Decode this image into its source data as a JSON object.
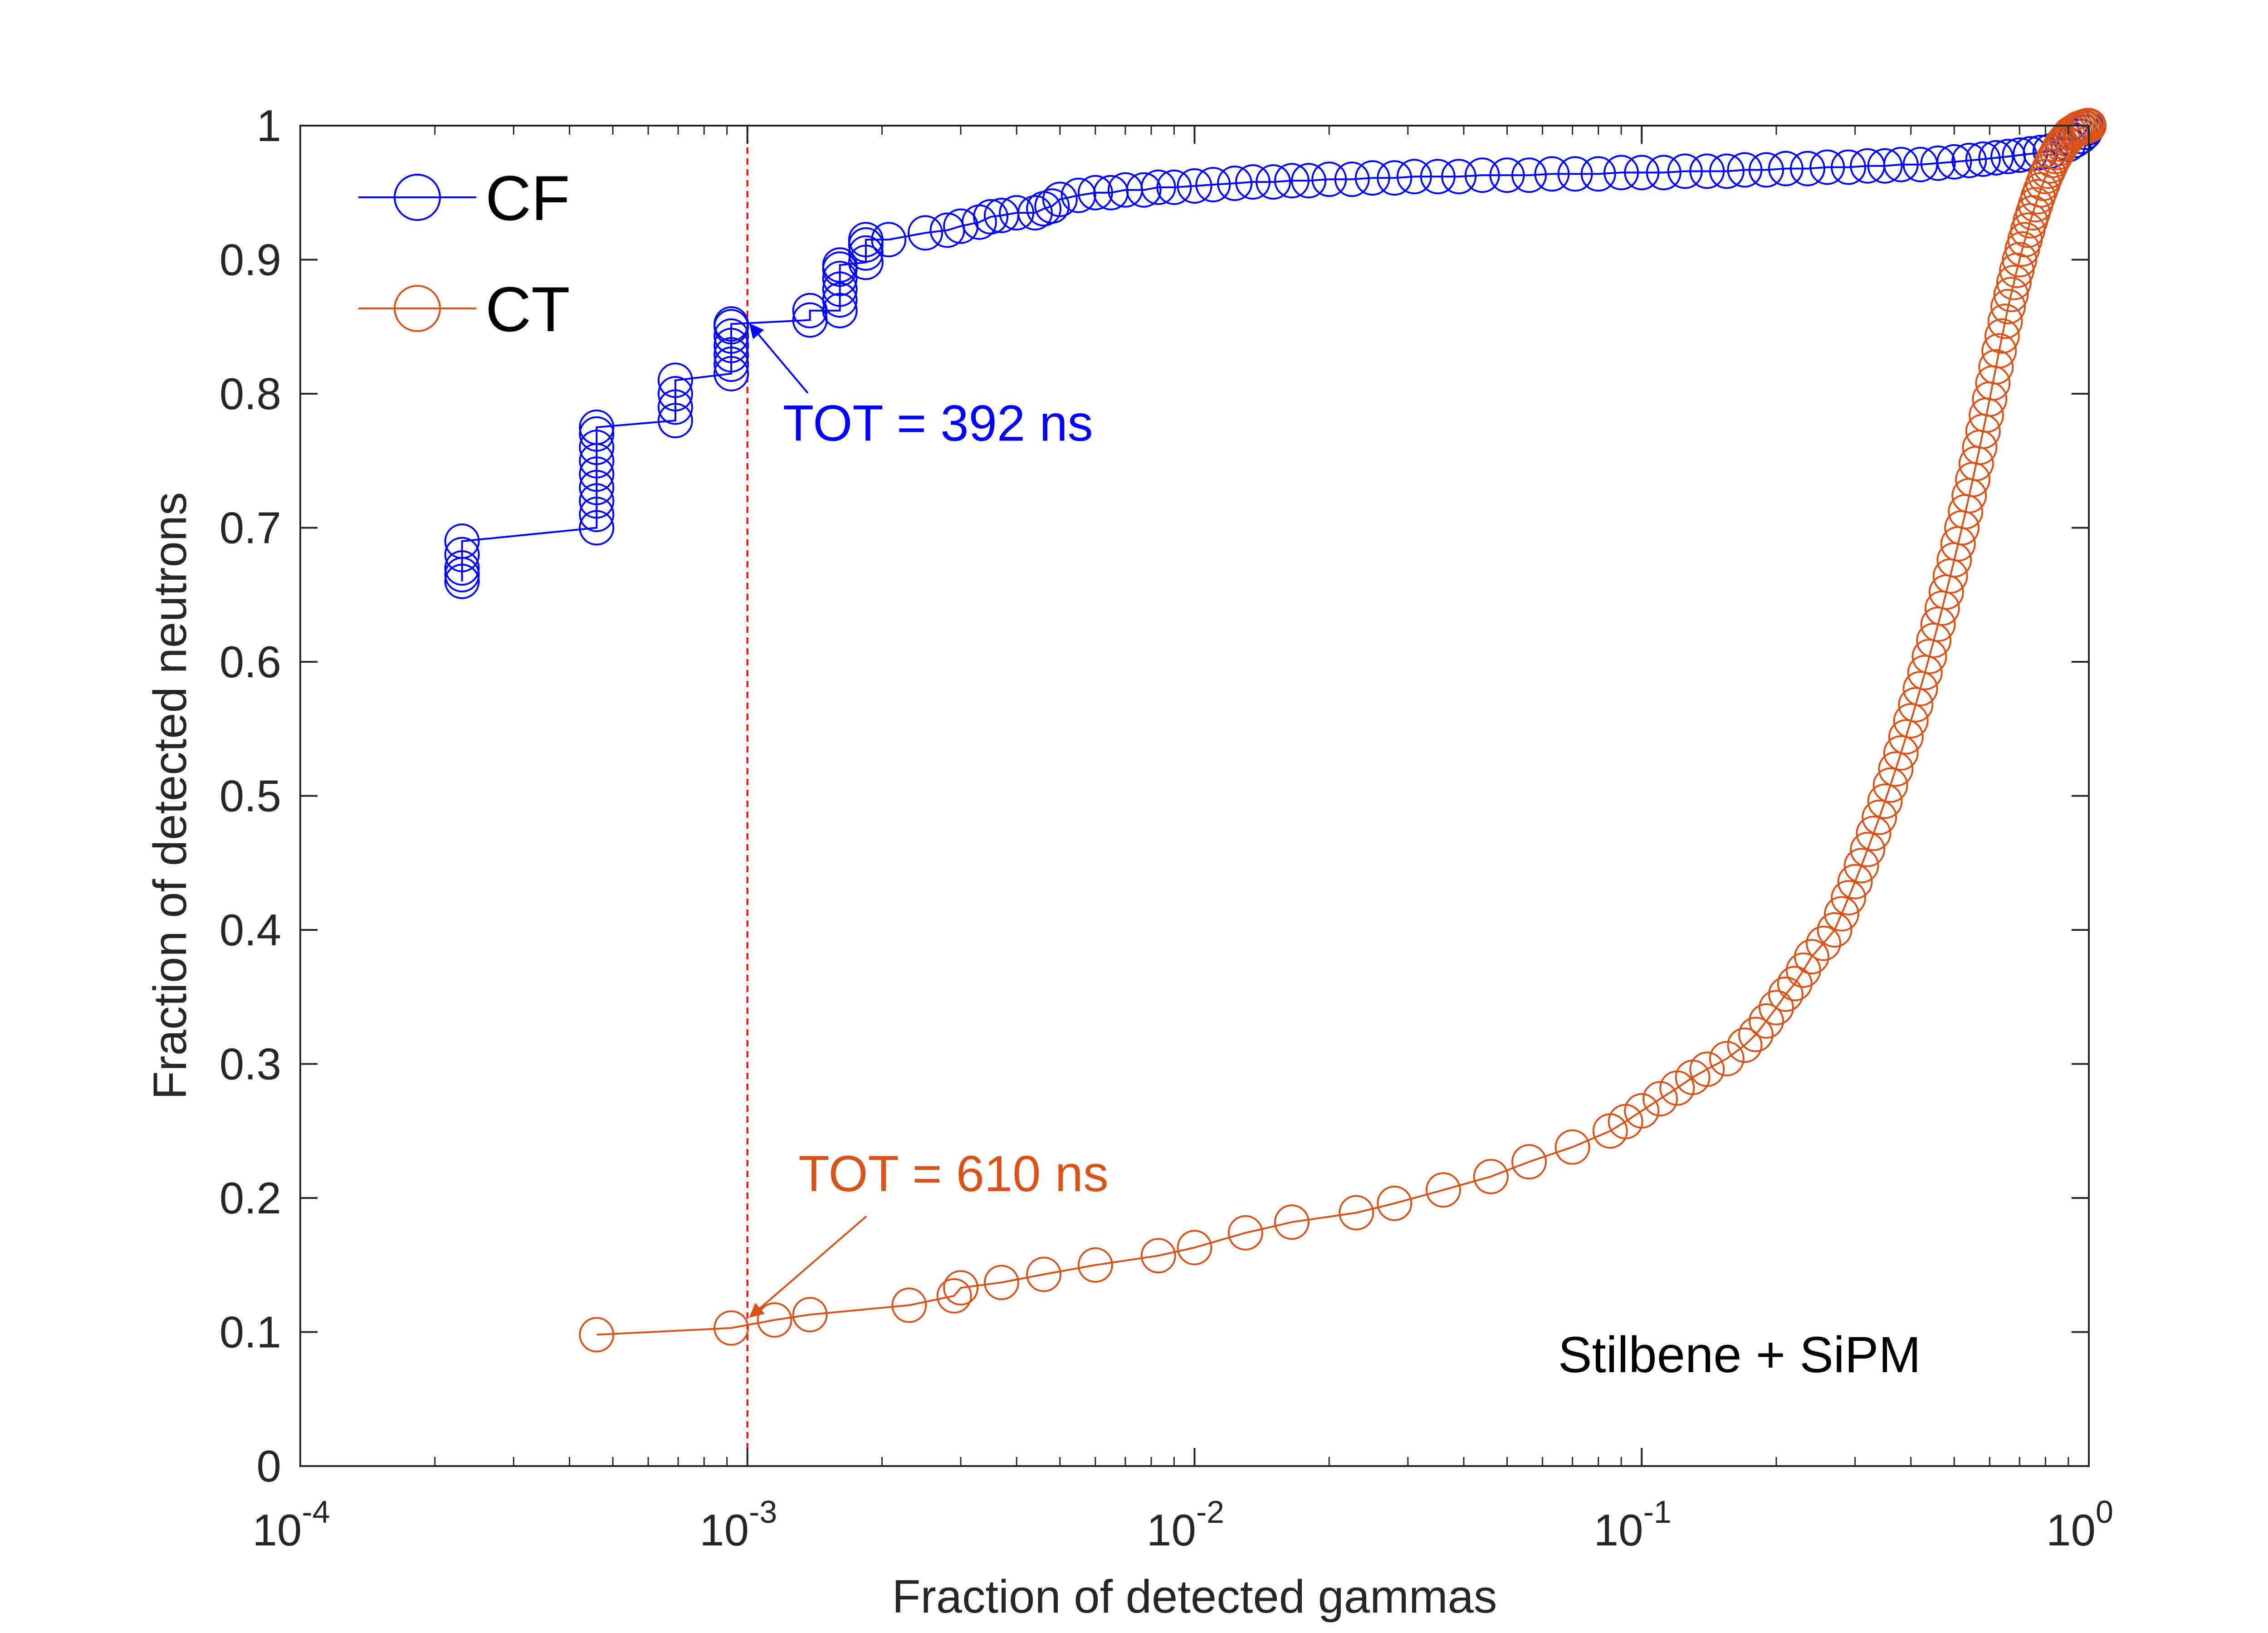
{
  "chart_data": {
    "type": "scatter",
    "title": "",
    "xlabel": "Fraction of detected gammas",
    "ylabel": "Fraction of detected neutrons",
    "xscale": "log",
    "xlim": [
      0.0001,
      1
    ],
    "ylim": [
      0,
      1
    ],
    "x_ticks": [
      {
        "value": 0.0001,
        "base": "10",
        "exp": "-4"
      },
      {
        "value": 0.001,
        "base": "10",
        "exp": "-3"
      },
      {
        "value": 0.01,
        "base": "10",
        "exp": "-2"
      },
      {
        "value": 0.1,
        "base": "10",
        "exp": "-1"
      },
      {
        "value": 1,
        "base": "10",
        "exp": "0"
      }
    ],
    "y_ticks": [
      {
        "value": 0,
        "label": "0"
      },
      {
        "value": 0.1,
        "label": "0.1"
      },
      {
        "value": 0.2,
        "label": "0.2"
      },
      {
        "value": 0.3,
        "label": "0.3"
      },
      {
        "value": 0.4,
        "label": "0.4"
      },
      {
        "value": 0.5,
        "label": "0.5"
      },
      {
        "value": 0.6,
        "label": "0.6"
      },
      {
        "value": 0.7,
        "label": "0.7"
      },
      {
        "value": 0.8,
        "label": "0.8"
      },
      {
        "value": 0.9,
        "label": "0.9"
      },
      {
        "value": 1,
        "label": "1"
      }
    ],
    "grid": false,
    "legend_position": "top-left",
    "series": [
      {
        "name": "CF",
        "color": "#0000ff",
        "marker": "circle-open",
        "x": [
          0.00023,
          0.00023,
          0.00023,
          0.00023,
          0.00023,
          0.00046,
          0.00046,
          0.00046,
          0.00046,
          0.00046,
          0.00046,
          0.00046,
          0.00046,
          0.00046,
          0.00069,
          0.00069,
          0.00069,
          0.00069,
          0.00092,
          0.00092,
          0.00092,
          0.00092,
          0.00092,
          0.00092,
          0.00092,
          0.00138,
          0.00138,
          0.00161,
          0.00161,
          0.00161,
          0.00161,
          0.00161,
          0.00161,
          0.00184,
          0.00184,
          0.00184,
          0.00184,
          0.00207,
          0.0025,
          0.0028,
          0.003,
          0.0033,
          0.0035,
          0.0037,
          0.004,
          0.0044,
          0.0046,
          0.0048,
          0.005,
          0.0055,
          0.006,
          0.0065,
          0.007,
          0.0077,
          0.0083,
          0.009,
          0.01,
          0.011,
          0.0123,
          0.0135,
          0.015,
          0.0165,
          0.018,
          0.02,
          0.0225,
          0.025,
          0.028,
          0.031,
          0.035,
          0.039,
          0.044,
          0.05,
          0.056,
          0.063,
          0.071,
          0.08,
          0.09,
          0.1,
          0.112,
          0.125,
          0.14,
          0.155,
          0.17,
          0.19,
          0.21,
          0.235,
          0.26,
          0.29,
          0.32,
          0.35,
          0.38,
          0.42,
          0.46,
          0.5,
          0.54,
          0.58,
          0.62,
          0.66,
          0.7,
          0.74,
          0.78,
          0.82,
          0.86,
          0.9,
          0.93,
          0.96,
          0.98,
          0.99,
          1.0
        ],
        "y": [
          0.66,
          0.665,
          0.67,
          0.68,
          0.69,
          0.7,
          0.71,
          0.72,
          0.73,
          0.74,
          0.75,
          0.76,
          0.77,
          0.775,
          0.78,
          0.79,
          0.8,
          0.81,
          0.815,
          0.822,
          0.829,
          0.836,
          0.843,
          0.85,
          0.852,
          0.855,
          0.862,
          0.862,
          0.87,
          0.878,
          0.886,
          0.893,
          0.896,
          0.898,
          0.905,
          0.911,
          0.915,
          0.915,
          0.92,
          0.922,
          0.925,
          0.928,
          0.932,
          0.933,
          0.935,
          0.935,
          0.938,
          0.94,
          0.945,
          0.948,
          0.95,
          0.95,
          0.952,
          0.952,
          0.954,
          0.954,
          0.955,
          0.956,
          0.957,
          0.958,
          0.958,
          0.959,
          0.959,
          0.96,
          0.96,
          0.961,
          0.961,
          0.962,
          0.962,
          0.962,
          0.963,
          0.963,
          0.963,
          0.964,
          0.964,
          0.964,
          0.965,
          0.965,
          0.965,
          0.966,
          0.966,
          0.966,
          0.967,
          0.967,
          0.968,
          0.968,
          0.969,
          0.969,
          0.97,
          0.97,
          0.971,
          0.971,
          0.972,
          0.973,
          0.974,
          0.975,
          0.976,
          0.977,
          0.978,
          0.979,
          0.98,
          0.981,
          0.983,
          0.986,
          0.989,
          0.992,
          0.995,
          0.998,
          1.0
        ]
      },
      {
        "name": "CT",
        "color": "#d95319",
        "marker": "circle-open",
        "x": [
          0.00046,
          0.00092,
          0.00115,
          0.00138,
          0.0023,
          0.0029,
          0.003,
          0.0037,
          0.0046,
          0.006,
          0.0083,
          0.01,
          0.013,
          0.0165,
          0.023,
          0.028,
          0.036,
          0.046,
          0.056,
          0.07,
          0.085,
          0.092,
          0.1,
          0.11,
          0.12,
          0.13,
          0.14,
          0.155,
          0.17,
          0.18,
          0.19,
          0.2,
          0.21,
          0.22,
          0.23,
          0.24,
          0.255,
          0.27,
          0.28,
          0.29,
          0.3,
          0.31,
          0.32,
          0.33,
          0.34,
          0.35,
          0.36,
          0.37,
          0.38,
          0.39,
          0.4,
          0.41,
          0.42,
          0.43,
          0.44,
          0.45,
          0.46,
          0.47,
          0.48,
          0.49,
          0.5,
          0.51,
          0.52,
          0.53,
          0.54,
          0.55,
          0.56,
          0.57,
          0.58,
          0.59,
          0.6,
          0.61,
          0.62,
          0.63,
          0.64,
          0.65,
          0.66,
          0.67,
          0.68,
          0.69,
          0.7,
          0.71,
          0.72,
          0.73,
          0.74,
          0.75,
          0.76,
          0.77,
          0.78,
          0.79,
          0.8,
          0.81,
          0.82,
          0.83,
          0.84,
          0.85,
          0.86,
          0.87,
          0.88,
          0.89,
          0.9,
          0.91,
          0.92,
          0.93,
          0.94,
          0.95,
          0.96,
          0.97,
          0.98,
          0.99,
          1.0
        ],
        "y": [
          0.098,
          0.103,
          0.109,
          0.113,
          0.12,
          0.127,
          0.133,
          0.137,
          0.143,
          0.15,
          0.157,
          0.163,
          0.174,
          0.182,
          0.189,
          0.196,
          0.206,
          0.216,
          0.227,
          0.238,
          0.25,
          0.257,
          0.265,
          0.274,
          0.282,
          0.29,
          0.296,
          0.304,
          0.314,
          0.322,
          0.332,
          0.342,
          0.352,
          0.36,
          0.37,
          0.38,
          0.39,
          0.4,
          0.412,
          0.424,
          0.436,
          0.448,
          0.46,
          0.472,
          0.484,
          0.496,
          0.508,
          0.52,
          0.532,
          0.544,
          0.556,
          0.568,
          0.58,
          0.592,
          0.604,
          0.616,
          0.628,
          0.64,
          0.652,
          0.664,
          0.676,
          0.688,
          0.7,
          0.712,
          0.724,
          0.736,
          0.748,
          0.76,
          0.772,
          0.784,
          0.796,
          0.808,
          0.82,
          0.832,
          0.843,
          0.854,
          0.865,
          0.874,
          0.883,
          0.892,
          0.9,
          0.908,
          0.915,
          0.922,
          0.929,
          0.935,
          0.941,
          0.947,
          0.952,
          0.957,
          0.962,
          0.966,
          0.97,
          0.974,
          0.977,
          0.98,
          0.983,
          0.986,
          0.988,
          0.99,
          0.992,
          0.994,
          0.995,
          0.996,
          0.997,
          0.998,
          0.998,
          0.999,
          0.999,
          1.0,
          1.0
        ]
      }
    ],
    "reference_line": {
      "x": 0.001,
      "color": "#ff0000",
      "style": "dashed"
    },
    "annotations": [
      {
        "text": "TOT = 392 ns",
        "color": "#0000ff",
        "arrow_to": {
          "x": 0.001,
          "y": 0.853
        },
        "text_at": {
          "x": 0.0012,
          "y": 0.765
        }
      },
      {
        "text": "TOT = 610 ns",
        "color": "#d95319",
        "arrow_to": {
          "x": 0.001,
          "y": 0.11
        },
        "text_at": {
          "x": 0.0013,
          "y": 0.205
        }
      },
      {
        "text": "Stilbene + SiPM",
        "color": "#000000",
        "text_at": {
          "x": 0.065,
          "y": 0.07
        }
      }
    ]
  }
}
